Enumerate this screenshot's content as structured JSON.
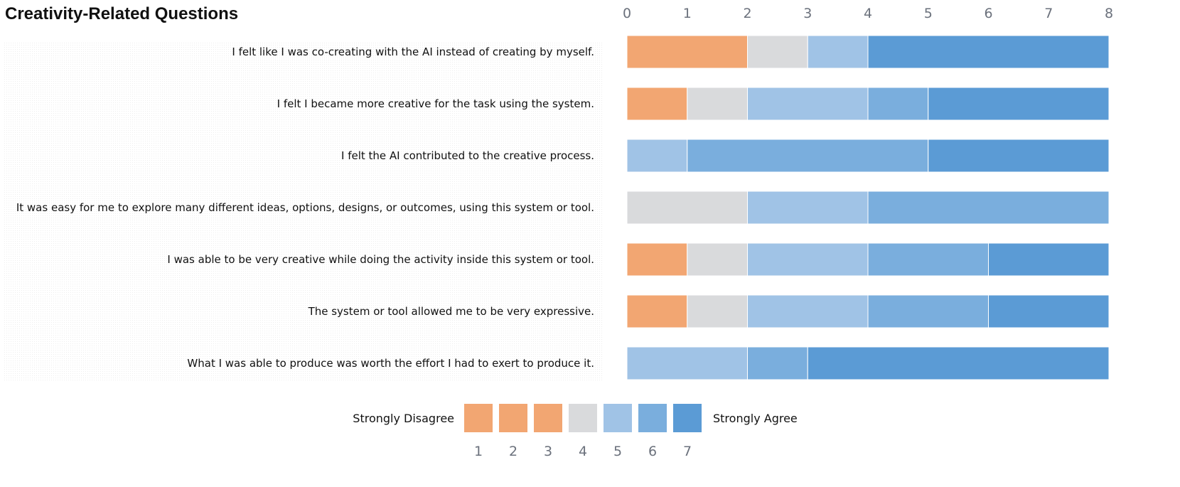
{
  "chart_data": {
    "type": "bar",
    "stacked": true,
    "orientation": "horizontal",
    "title": "Creativity-Related Questions",
    "xlim": [
      0,
      8
    ],
    "x_ticks": [
      0,
      1,
      2,
      3,
      4,
      5,
      6,
      7,
      8
    ],
    "categories": [
      "I felt like I was co-creating with the AI instead of creating by myself.",
      "I felt I became more creative for the task using the system.",
      "I felt the AI contributed to the creative process.",
      "It was easy for me to explore many different ideas, options, designs, or outcomes, using this system or tool.",
      "I was able to be very creative while doing the activity inside this system or tool.",
      "The system or tool allowed me to be very expressive.",
      "What I was able to produce was worth the effort I had to exert to produce it."
    ],
    "series": [
      {
        "name": "1",
        "color": "#f2a672",
        "values": [
          0,
          0,
          0,
          0,
          0,
          0,
          0
        ]
      },
      {
        "name": "2",
        "color": "#f2a672",
        "values": [
          0,
          0,
          0,
          0,
          0,
          0,
          0
        ]
      },
      {
        "name": "3",
        "color": "#f2a672",
        "values": [
          2,
          1,
          0,
          0,
          1,
          1,
          0
        ]
      },
      {
        "name": "4",
        "color": "#d9dadc",
        "values": [
          1,
          1,
          0,
          2,
          1,
          1,
          0
        ]
      },
      {
        "name": "5",
        "color": "#a0c3e6",
        "values": [
          1,
          2,
          1,
          2,
          2,
          2,
          2
        ]
      },
      {
        "name": "6",
        "color": "#7aaedd",
        "values": [
          0,
          1,
          4,
          4,
          2,
          2,
          1
        ]
      },
      {
        "name": "7",
        "color": "#5b9bd5",
        "values": [
          4,
          3,
          3,
          0,
          2,
          2,
          5
        ]
      }
    ],
    "legend": {
      "left_label": "Strongly Disagree",
      "right_label": "Strongly Agree",
      "levels": [
        "1",
        "2",
        "3",
        "4",
        "5",
        "6",
        "7"
      ],
      "colors": [
        "#f2a672",
        "#f2a672",
        "#f2a672",
        "#d9dadc",
        "#a0c3e6",
        "#7aaedd",
        "#5b9bd5"
      ],
      "placement": "bottom-center"
    },
    "grid": false
  }
}
